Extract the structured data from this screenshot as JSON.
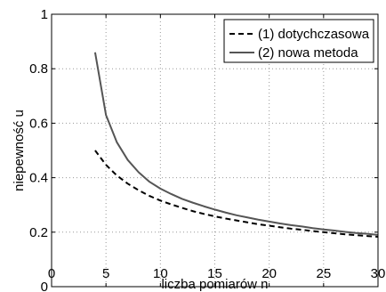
{
  "chart_data": {
    "type": "line",
    "xlabel": "liczba pomiarów n",
    "ylabel": "niepewność u",
    "xlim": [
      0,
      30
    ],
    "ylim": [
      0,
      1
    ],
    "xticks": [
      "0",
      "5",
      "10",
      "15",
      "20",
      "25",
      "30"
    ],
    "yticks": [
      "0",
      "0.2",
      "0.4",
      "0.6",
      "0.8",
      "1"
    ],
    "grid": true,
    "legend_position": "top-right",
    "series": [
      {
        "name": "(1) dotychczasowa",
        "style": "dashed",
        "color": "#000000",
        "x": [
          4,
          5,
          6,
          7,
          8,
          9,
          10,
          11,
          12,
          13,
          14,
          15,
          16,
          17,
          18,
          19,
          20,
          21,
          22,
          23,
          24,
          25,
          26,
          27,
          28,
          29,
          30
        ],
        "y": [
          0.5,
          0.447,
          0.408,
          0.378,
          0.354,
          0.333,
          0.316,
          0.302,
          0.289,
          0.277,
          0.267,
          0.258,
          0.25,
          0.243,
          0.236,
          0.229,
          0.224,
          0.218,
          0.213,
          0.209,
          0.204,
          0.2,
          0.196,
          0.192,
          0.189,
          0.186,
          0.183
        ]
      },
      {
        "name": "(2) nowa metoda",
        "style": "solid",
        "color": "#555555",
        "x": [
          4,
          5,
          6,
          7,
          8,
          9,
          10,
          11,
          12,
          13,
          14,
          15,
          16,
          17,
          18,
          19,
          20,
          21,
          22,
          23,
          24,
          25,
          26,
          27,
          28,
          29,
          30
        ],
        "y": [
          0.86,
          0.63,
          0.53,
          0.465,
          0.42,
          0.385,
          0.36,
          0.34,
          0.322,
          0.308,
          0.295,
          0.283,
          0.272,
          0.262,
          0.254,
          0.246,
          0.239,
          0.232,
          0.226,
          0.221,
          0.215,
          0.21,
          0.206,
          0.201,
          0.197,
          0.194,
          0.19
        ]
      }
    ]
  }
}
